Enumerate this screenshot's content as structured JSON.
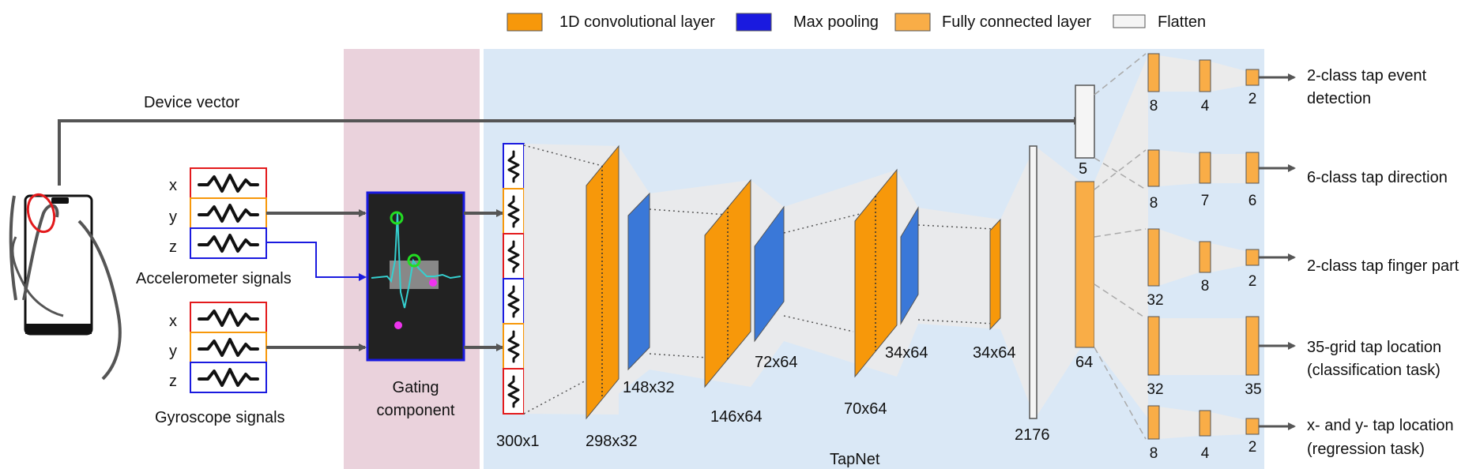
{
  "legend": [
    {
      "label": "1D convolutional layer",
      "color": "#f7980a"
    },
    {
      "label": "Max pooling",
      "color": "#1a1adf"
    },
    {
      "label": "Fully connected layer",
      "color": "#f9ad47"
    },
    {
      "label": "Flatten",
      "color": "#f5f5f5"
    }
  ],
  "input": {
    "device_vector": "Device vector",
    "accelerometer_label": "Accelerometer signals",
    "gyroscope_label": "Gyroscope signals",
    "axes": [
      "x",
      "y",
      "z"
    ]
  },
  "gating": {
    "line1": "Gating",
    "line2": "component"
  },
  "tapnet": {
    "title": "TapNet",
    "dims": [
      "300x1",
      "298x32",
      "148x32",
      "146x64",
      "72x64",
      "70x64",
      "34x64",
      "34x64",
      "2176"
    ],
    "device_fc": "5",
    "fc_main": "64"
  },
  "heads": [
    {
      "sizes": [
        "8",
        "4",
        "2"
      ],
      "line1": "2-class tap event",
      "line2": "detection"
    },
    {
      "sizes": [
        "8",
        "7",
        "6"
      ],
      "line1": "6-class tap direction",
      "line2": ""
    },
    {
      "sizes": [
        "32",
        "8",
        "2"
      ],
      "line1": "2-class tap finger part",
      "line2": ""
    },
    {
      "sizes": [
        "32",
        "35"
      ],
      "line1": "35-grid tap location",
      "line2": "(classification task)"
    },
    {
      "sizes": [
        "8",
        "4",
        "2"
      ],
      "line1": "x- and y- tap location",
      "line2": "(regression task)"
    }
  ],
  "colors": {
    "conv": "#f7980a",
    "pool": "#3a78d8",
    "fc": "#f9ad47",
    "gating_bg": "#ead2dc",
    "tapnet_bg": "#dae8f6",
    "accent_red": "#e31a1c",
    "accent_orange": "#f7980a",
    "accent_blue": "#1a1adf"
  }
}
